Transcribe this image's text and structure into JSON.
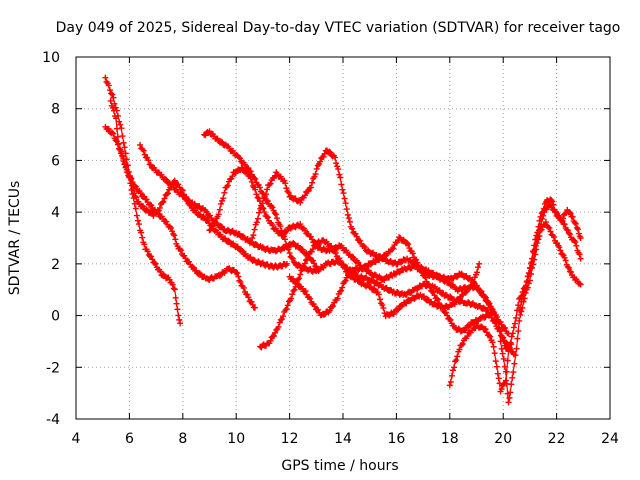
{
  "chart_data": {
    "type": "scatter",
    "title": "Day 049 of 2025, Sidereal Day-to-day VTEC variation (SDTVAR) for receiver tago",
    "xlabel": "GPS time / hours",
    "ylabel": "SDTVAR / TECUs",
    "xlim": [
      4,
      24
    ],
    "ylim": [
      -4,
      10
    ],
    "x_ticks": [
      "4",
      "6",
      "8",
      "10",
      "12",
      "14",
      "16",
      "18",
      "20",
      "22",
      "24"
    ],
    "y_ticks": [
      "-4",
      "-2",
      "0",
      "2",
      "4",
      "6",
      "8",
      "10"
    ],
    "grid": true,
    "marker": "plus",
    "color": "#ff0000",
    "series": [
      {
        "name": "track-1",
        "points": [
          [
            5.1,
            9.2
          ],
          [
            5.4,
            8.4
          ],
          [
            5.7,
            7.2
          ],
          [
            5.9,
            6.0
          ],
          [
            6.1,
            5.0
          ],
          [
            6.3,
            4.4
          ],
          [
            6.6,
            4.1
          ],
          [
            6.9,
            3.9
          ],
          [
            7.1,
            4.1
          ],
          [
            7.4,
            4.7
          ],
          [
            7.7,
            5.2
          ],
          [
            8.0,
            4.8
          ],
          [
            8.3,
            4.2
          ],
          [
            8.6,
            3.9
          ],
          [
            8.9,
            3.7
          ],
          [
            9.2,
            3.3
          ],
          [
            9.5,
            3.0
          ],
          [
            9.8,
            2.8
          ],
          [
            10.1,
            2.6
          ],
          [
            10.4,
            2.3
          ],
          [
            10.7,
            2.1
          ],
          [
            11.0,
            2.0
          ],
          [
            11.3,
            1.9
          ],
          [
            11.6,
            1.9
          ],
          [
            11.9,
            2.0
          ]
        ]
      },
      {
        "name": "track-2",
        "points": [
          [
            5.1,
            7.3
          ],
          [
            5.4,
            7.0
          ],
          [
            5.7,
            6.3
          ],
          [
            6.0,
            5.3
          ],
          [
            6.2,
            4.3
          ],
          [
            6.4,
            3.3
          ],
          [
            6.6,
            2.6
          ],
          [
            6.9,
            2.1
          ],
          [
            7.2,
            1.6
          ],
          [
            7.5,
            1.4
          ],
          [
            7.7,
            1.0
          ],
          [
            7.8,
            0.2
          ],
          [
            7.9,
            -0.3
          ]
        ]
      },
      {
        "name": "track-3",
        "points": [
          [
            5.3,
            8.3
          ],
          [
            5.5,
            7.6
          ],
          [
            5.6,
            6.6
          ],
          [
            5.9,
            5.6
          ],
          [
            6.2,
            5.0
          ],
          [
            6.6,
            4.5
          ],
          [
            7.0,
            4.0
          ],
          [
            7.3,
            3.7
          ],
          [
            7.6,
            3.3
          ],
          [
            7.8,
            2.7
          ],
          [
            8.1,
            2.2
          ],
          [
            8.5,
            1.7
          ],
          [
            8.9,
            1.4
          ],
          [
            9.3,
            1.5
          ],
          [
            9.7,
            1.8
          ],
          [
            10.0,
            1.7
          ],
          [
            10.2,
            1.2
          ],
          [
            10.5,
            0.6
          ],
          [
            10.7,
            0.3
          ]
        ]
      },
      {
        "name": "track-4",
        "points": [
          [
            6.4,
            6.6
          ],
          [
            6.8,
            5.8
          ],
          [
            7.2,
            5.4
          ],
          [
            7.6,
            5.0
          ],
          [
            8.0,
            4.6
          ],
          [
            8.4,
            4.3
          ],
          [
            8.8,
            4.1
          ],
          [
            9.2,
            3.6
          ],
          [
            9.6,
            3.3
          ],
          [
            10.0,
            3.2
          ],
          [
            10.3,
            3.0
          ],
          [
            10.6,
            2.8
          ],
          [
            11.0,
            2.6
          ],
          [
            11.4,
            2.5
          ],
          [
            11.8,
            2.6
          ],
          [
            12.1,
            2.8
          ],
          [
            12.4,
            2.6
          ],
          [
            12.8,
            2.2
          ],
          [
            13.0,
            1.9
          ]
        ]
      },
      {
        "name": "track-5",
        "points": [
          [
            8.8,
            7.0
          ],
          [
            9.0,
            7.1
          ],
          [
            9.3,
            6.8
          ],
          [
            9.7,
            6.5
          ],
          [
            10.1,
            6.1
          ],
          [
            10.5,
            5.6
          ],
          [
            10.8,
            5.1
          ],
          [
            11.1,
            4.5
          ],
          [
            11.4,
            4.1
          ],
          [
            11.7,
            3.3
          ],
          [
            12.0,
            2.4
          ],
          [
            12.2,
            2.0
          ],
          [
            12.6,
            1.8
          ],
          [
            13.0,
            1.7
          ],
          [
            13.4,
            2.0
          ],
          [
            13.8,
            2.1
          ],
          [
            14.2,
            1.8
          ],
          [
            14.6,
            1.5
          ],
          [
            15.0,
            1.4
          ],
          [
            15.5,
            1.1
          ],
          [
            15.9,
            0.9
          ],
          [
            16.3,
            0.8
          ],
          [
            16.7,
            1.0
          ],
          [
            17.0,
            1.2
          ],
          [
            17.4,
            1.1
          ],
          [
            17.8,
            0.8
          ],
          [
            18.2,
            0.6
          ],
          [
            18.6,
            0.5
          ],
          [
            19.0,
            0.4
          ],
          [
            19.4,
            0.2
          ],
          [
            19.7,
            -0.3
          ],
          [
            20.0,
            -0.9
          ],
          [
            20.2,
            -1.2
          ],
          [
            20.4,
            -1.5
          ]
        ]
      },
      {
        "name": "track-6",
        "points": [
          [
            9.0,
            3.3
          ],
          [
            9.3,
            3.8
          ],
          [
            9.6,
            4.9
          ],
          [
            9.9,
            5.5
          ],
          [
            10.2,
            5.7
          ],
          [
            10.5,
            5.4
          ],
          [
            10.8,
            4.6
          ],
          [
            11.1,
            3.9
          ],
          [
            11.4,
            3.4
          ],
          [
            11.7,
            3.1
          ],
          [
            12.0,
            3.4
          ],
          [
            12.4,
            3.5
          ],
          [
            12.8,
            3.0
          ],
          [
            13.1,
            2.6
          ],
          [
            13.5,
            2.5
          ],
          [
            13.9,
            2.7
          ],
          [
            14.3,
            2.3
          ],
          [
            14.7,
            1.9
          ],
          [
            15.1,
            1.6
          ],
          [
            15.5,
            1.4
          ],
          [
            15.9,
            1.6
          ],
          [
            16.3,
            1.8
          ],
          [
            16.7,
            1.9
          ],
          [
            17.1,
            1.6
          ],
          [
            17.5,
            1.5
          ],
          [
            17.9,
            1.3
          ],
          [
            18.3,
            1.0
          ],
          [
            18.7,
            1.1
          ],
          [
            19.0,
            1.1
          ],
          [
            19.3,
            0.7
          ],
          [
            19.6,
            0.2
          ],
          [
            19.9,
            -0.3
          ],
          [
            20.2,
            -0.7
          ]
        ]
      },
      {
        "name": "track-7",
        "points": [
          [
            10.6,
            3.0
          ],
          [
            10.9,
            4.1
          ],
          [
            11.2,
            5.0
          ],
          [
            11.5,
            5.5
          ],
          [
            11.8,
            5.2
          ],
          [
            12.0,
            4.6
          ],
          [
            12.4,
            4.4
          ],
          [
            12.8,
            5.0
          ],
          [
            13.1,
            5.9
          ],
          [
            13.4,
            6.4
          ],
          [
            13.7,
            6.1
          ],
          [
            13.9,
            5.3
          ],
          [
            14.1,
            4.3
          ],
          [
            14.3,
            3.4
          ],
          [
            14.6,
            2.9
          ],
          [
            14.9,
            2.5
          ],
          [
            15.3,
            2.3
          ],
          [
            15.7,
            2.1
          ],
          [
            16.0,
            2.0
          ],
          [
            16.4,
            2.2
          ],
          [
            16.8,
            1.9
          ],
          [
            17.2,
            1.7
          ],
          [
            17.6,
            1.5
          ],
          [
            18.0,
            1.4
          ],
          [
            18.4,
            1.6
          ],
          [
            18.8,
            1.4
          ],
          [
            19.1,
            1.0
          ],
          [
            19.4,
            0.6
          ],
          [
            19.7,
            0.0
          ],
          [
            19.9,
            -0.6
          ],
          [
            20.1,
            -1.3
          ],
          [
            20.3,
            -1.1
          ]
        ]
      },
      {
        "name": "track-8",
        "points": [
          [
            10.9,
            -1.2
          ],
          [
            11.2,
            -1.1
          ],
          [
            11.5,
            -0.6
          ],
          [
            11.8,
            0.1
          ],
          [
            12.1,
            0.8
          ],
          [
            12.4,
            1.6
          ],
          [
            12.7,
            2.3
          ],
          [
            13.0,
            2.8
          ],
          [
            13.3,
            2.9
          ],
          [
            13.6,
            2.6
          ],
          [
            13.9,
            2.1
          ],
          [
            14.2,
            1.6
          ],
          [
            14.6,
            1.3
          ],
          [
            15.0,
            1.1
          ],
          [
            15.3,
            0.9
          ],
          [
            15.6,
            0.0
          ],
          [
            15.9,
            0.1
          ],
          [
            16.2,
            0.4
          ],
          [
            16.5,
            0.6
          ],
          [
            16.9,
            0.8
          ],
          [
            17.3,
            0.5
          ],
          [
            17.7,
            0.3
          ],
          [
            18.1,
            0.4
          ],
          [
            18.5,
            0.8
          ],
          [
            18.9,
            1.3
          ],
          [
            19.1,
            2.0
          ]
        ]
      },
      {
        "name": "track-9",
        "points": [
          [
            12.0,
            1.5
          ],
          [
            12.3,
            1.2
          ],
          [
            12.6,
            0.9
          ],
          [
            12.9,
            0.4
          ],
          [
            13.2,
            0.0
          ],
          [
            13.5,
            0.2
          ],
          [
            13.8,
            0.7
          ],
          [
            14.1,
            1.4
          ],
          [
            14.4,
            1.8
          ],
          [
            14.7,
            1.8
          ],
          [
            15.0,
            2.0
          ],
          [
            15.4,
            2.2
          ],
          [
            15.8,
            2.5
          ],
          [
            16.1,
            3.0
          ],
          [
            16.4,
            2.8
          ],
          [
            16.7,
            2.2
          ],
          [
            17.0,
            1.6
          ],
          [
            17.3,
            1.0
          ],
          [
            17.6,
            0.5
          ],
          [
            17.9,
            0.0
          ],
          [
            18.2,
            -0.5
          ],
          [
            18.5,
            -0.6
          ],
          [
            18.8,
            -0.3
          ],
          [
            19.2,
            -0.1
          ],
          [
            19.6,
            0.1
          ]
        ]
      },
      {
        "name": "track-10",
        "points": [
          [
            18.0,
            -2.7
          ],
          [
            18.2,
            -1.8
          ],
          [
            18.4,
            -1.2
          ],
          [
            18.7,
            -0.7
          ],
          [
            19.0,
            -0.4
          ],
          [
            19.3,
            -0.5
          ],
          [
            19.6,
            -1.0
          ],
          [
            19.8,
            -2.2
          ],
          [
            19.9,
            -2.9
          ],
          [
            20.1,
            -2.5
          ],
          [
            20.2,
            -1.4
          ],
          [
            20.4,
            -0.5
          ],
          [
            20.6,
            0.6
          ],
          [
            20.9,
            1.3
          ],
          [
            21.1,
            2.2
          ],
          [
            21.3,
            3.1
          ],
          [
            21.5,
            3.9
          ],
          [
            21.7,
            4.3
          ],
          [
            21.9,
            4.1
          ],
          [
            22.1,
            3.8
          ],
          [
            22.3,
            3.5
          ],
          [
            22.5,
            3.1
          ],
          [
            22.7,
            2.8
          ],
          [
            22.9,
            2.2
          ]
        ]
      },
      {
        "name": "track-11",
        "points": [
          [
            19.9,
            -1.0
          ],
          [
            20.1,
            -2.2
          ],
          [
            20.2,
            -3.4
          ],
          [
            20.3,
            -2.7
          ],
          [
            20.5,
            -1.3
          ],
          [
            20.6,
            -0.2
          ],
          [
            20.8,
            0.7
          ],
          [
            21.0,
            1.4
          ],
          [
            21.2,
            2.4
          ],
          [
            21.4,
            3.3
          ],
          [
            21.6,
            3.6
          ],
          [
            21.9,
            3.0
          ],
          [
            22.1,
            2.6
          ],
          [
            22.3,
            2.2
          ],
          [
            22.5,
            1.7
          ],
          [
            22.7,
            1.4
          ],
          [
            22.9,
            1.2
          ]
        ]
      },
      {
        "name": "track-12",
        "points": [
          [
            20.6,
            0.2
          ],
          [
            20.8,
            1.0
          ],
          [
            21.0,
            1.8
          ],
          [
            21.2,
            2.9
          ],
          [
            21.4,
            3.8
          ],
          [
            21.6,
            4.4
          ],
          [
            21.8,
            4.5
          ],
          [
            22.0,
            3.9
          ],
          [
            22.2,
            3.7
          ],
          [
            22.4,
            4.1
          ],
          [
            22.6,
            3.8
          ],
          [
            22.8,
            3.3
          ],
          [
            22.9,
            3.0
          ]
        ]
      }
    ]
  }
}
